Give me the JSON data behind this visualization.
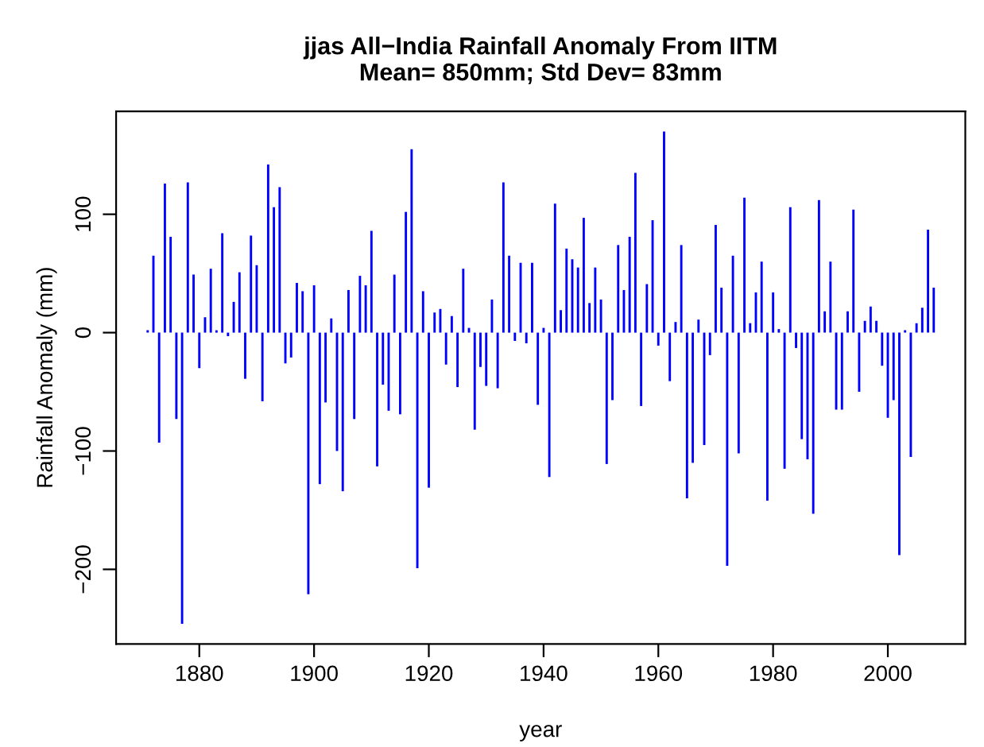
{
  "chart_data": {
    "type": "bar",
    "title": "jjas All−India Rainfall Anomaly From IITM\nMean= 850mm; Std Dev= 83mm",
    "xlabel": "year",
    "ylabel": "Rainfall Anomaly (mm)",
    "x": [
      1871,
      1872,
      1873,
      1874,
      1875,
      1876,
      1877,
      1878,
      1879,
      1880,
      1881,
      1882,
      1883,
      1884,
      1885,
      1886,
      1887,
      1888,
      1889,
      1890,
      1891,
      1892,
      1893,
      1894,
      1895,
      1896,
      1897,
      1898,
      1899,
      1900,
      1901,
      1902,
      1903,
      1904,
      1905,
      1906,
      1907,
      1908,
      1909,
      1910,
      1911,
      1912,
      1913,
      1914,
      1915,
      1916,
      1917,
      1918,
      1919,
      1920,
      1921,
      1922,
      1923,
      1924,
      1925,
      1926,
      1927,
      1928,
      1929,
      1930,
      1931,
      1932,
      1933,
      1934,
      1935,
      1936,
      1937,
      1938,
      1939,
      1940,
      1941,
      1942,
      1943,
      1944,
      1945,
      1946,
      1947,
      1948,
      1949,
      1950,
      1951,
      1952,
      1953,
      1954,
      1955,
      1956,
      1957,
      1958,
      1959,
      1960,
      1961,
      1962,
      1963,
      1964,
      1965,
      1966,
      1967,
      1968,
      1969,
      1970,
      1971,
      1972,
      1973,
      1974,
      1975,
      1976,
      1977,
      1978,
      1979,
      1980,
      1981,
      1982,
      1983,
      1984,
      1985,
      1986,
      1987,
      1988,
      1989,
      1990,
      1991,
      1992,
      1993,
      1994,
      1995,
      1996,
      1997,
      1998,
      1999,
      2000,
      2001,
      2002,
      2003,
      2004,
      2005,
      2006,
      2007,
      2008
    ],
    "values": [
      2,
      65,
      -93,
      126,
      81,
      -73,
      -246,
      127,
      49,
      -30,
      13,
      54,
      2,
      84,
      -3,
      26,
      51,
      -39,
      82,
      57,
      -58,
      142,
      106,
      123,
      -26,
      -21,
      42,
      35,
      -221,
      40,
      -128,
      -59,
      12,
      -100,
      -134,
      36,
      -73,
      48,
      40,
      86,
      -113,
      -44,
      -66,
      49,
      -69,
      102,
      155,
      -199,
      35,
      -131,
      17,
      20,
      -27,
      14,
      -46,
      54,
      4,
      -82,
      -29,
      -45,
      28,
      -47,
      127,
      65,
      -7,
      59,
      -9,
      59,
      -61,
      4,
      -122,
      109,
      19,
      71,
      62,
      55,
      97,
      25,
      55,
      28,
      -111,
      -57,
      74,
      36,
      81,
      135,
      -62,
      41,
      95,
      -11,
      170,
      -41,
      9,
      74,
      -140,
      -110,
      11,
      -95,
      -19,
      91,
      38,
      -197,
      65,
      -102,
      114,
      8,
      34,
      60,
      -142,
      34,
      3,
      -115,
      106,
      -13,
      -90,
      -107,
      -153,
      112,
      18,
      60,
      -65,
      -65,
      18,
      104,
      -50,
      10,
      22,
      10,
      -28,
      -72,
      -57,
      -188,
      2,
      -105,
      8,
      21,
      87,
      38
    ],
    "color": "#0000ff",
    "xlim": [
      1865.5,
      2013.5
    ],
    "xticks": [
      1880,
      1900,
      1920,
      1940,
      1960,
      1980,
      2000
    ],
    "ylim": [
      -263,
      187
    ],
    "yticks": [
      -200,
      -100,
      0,
      100
    ],
    "grid": false,
    "legend": false
  }
}
